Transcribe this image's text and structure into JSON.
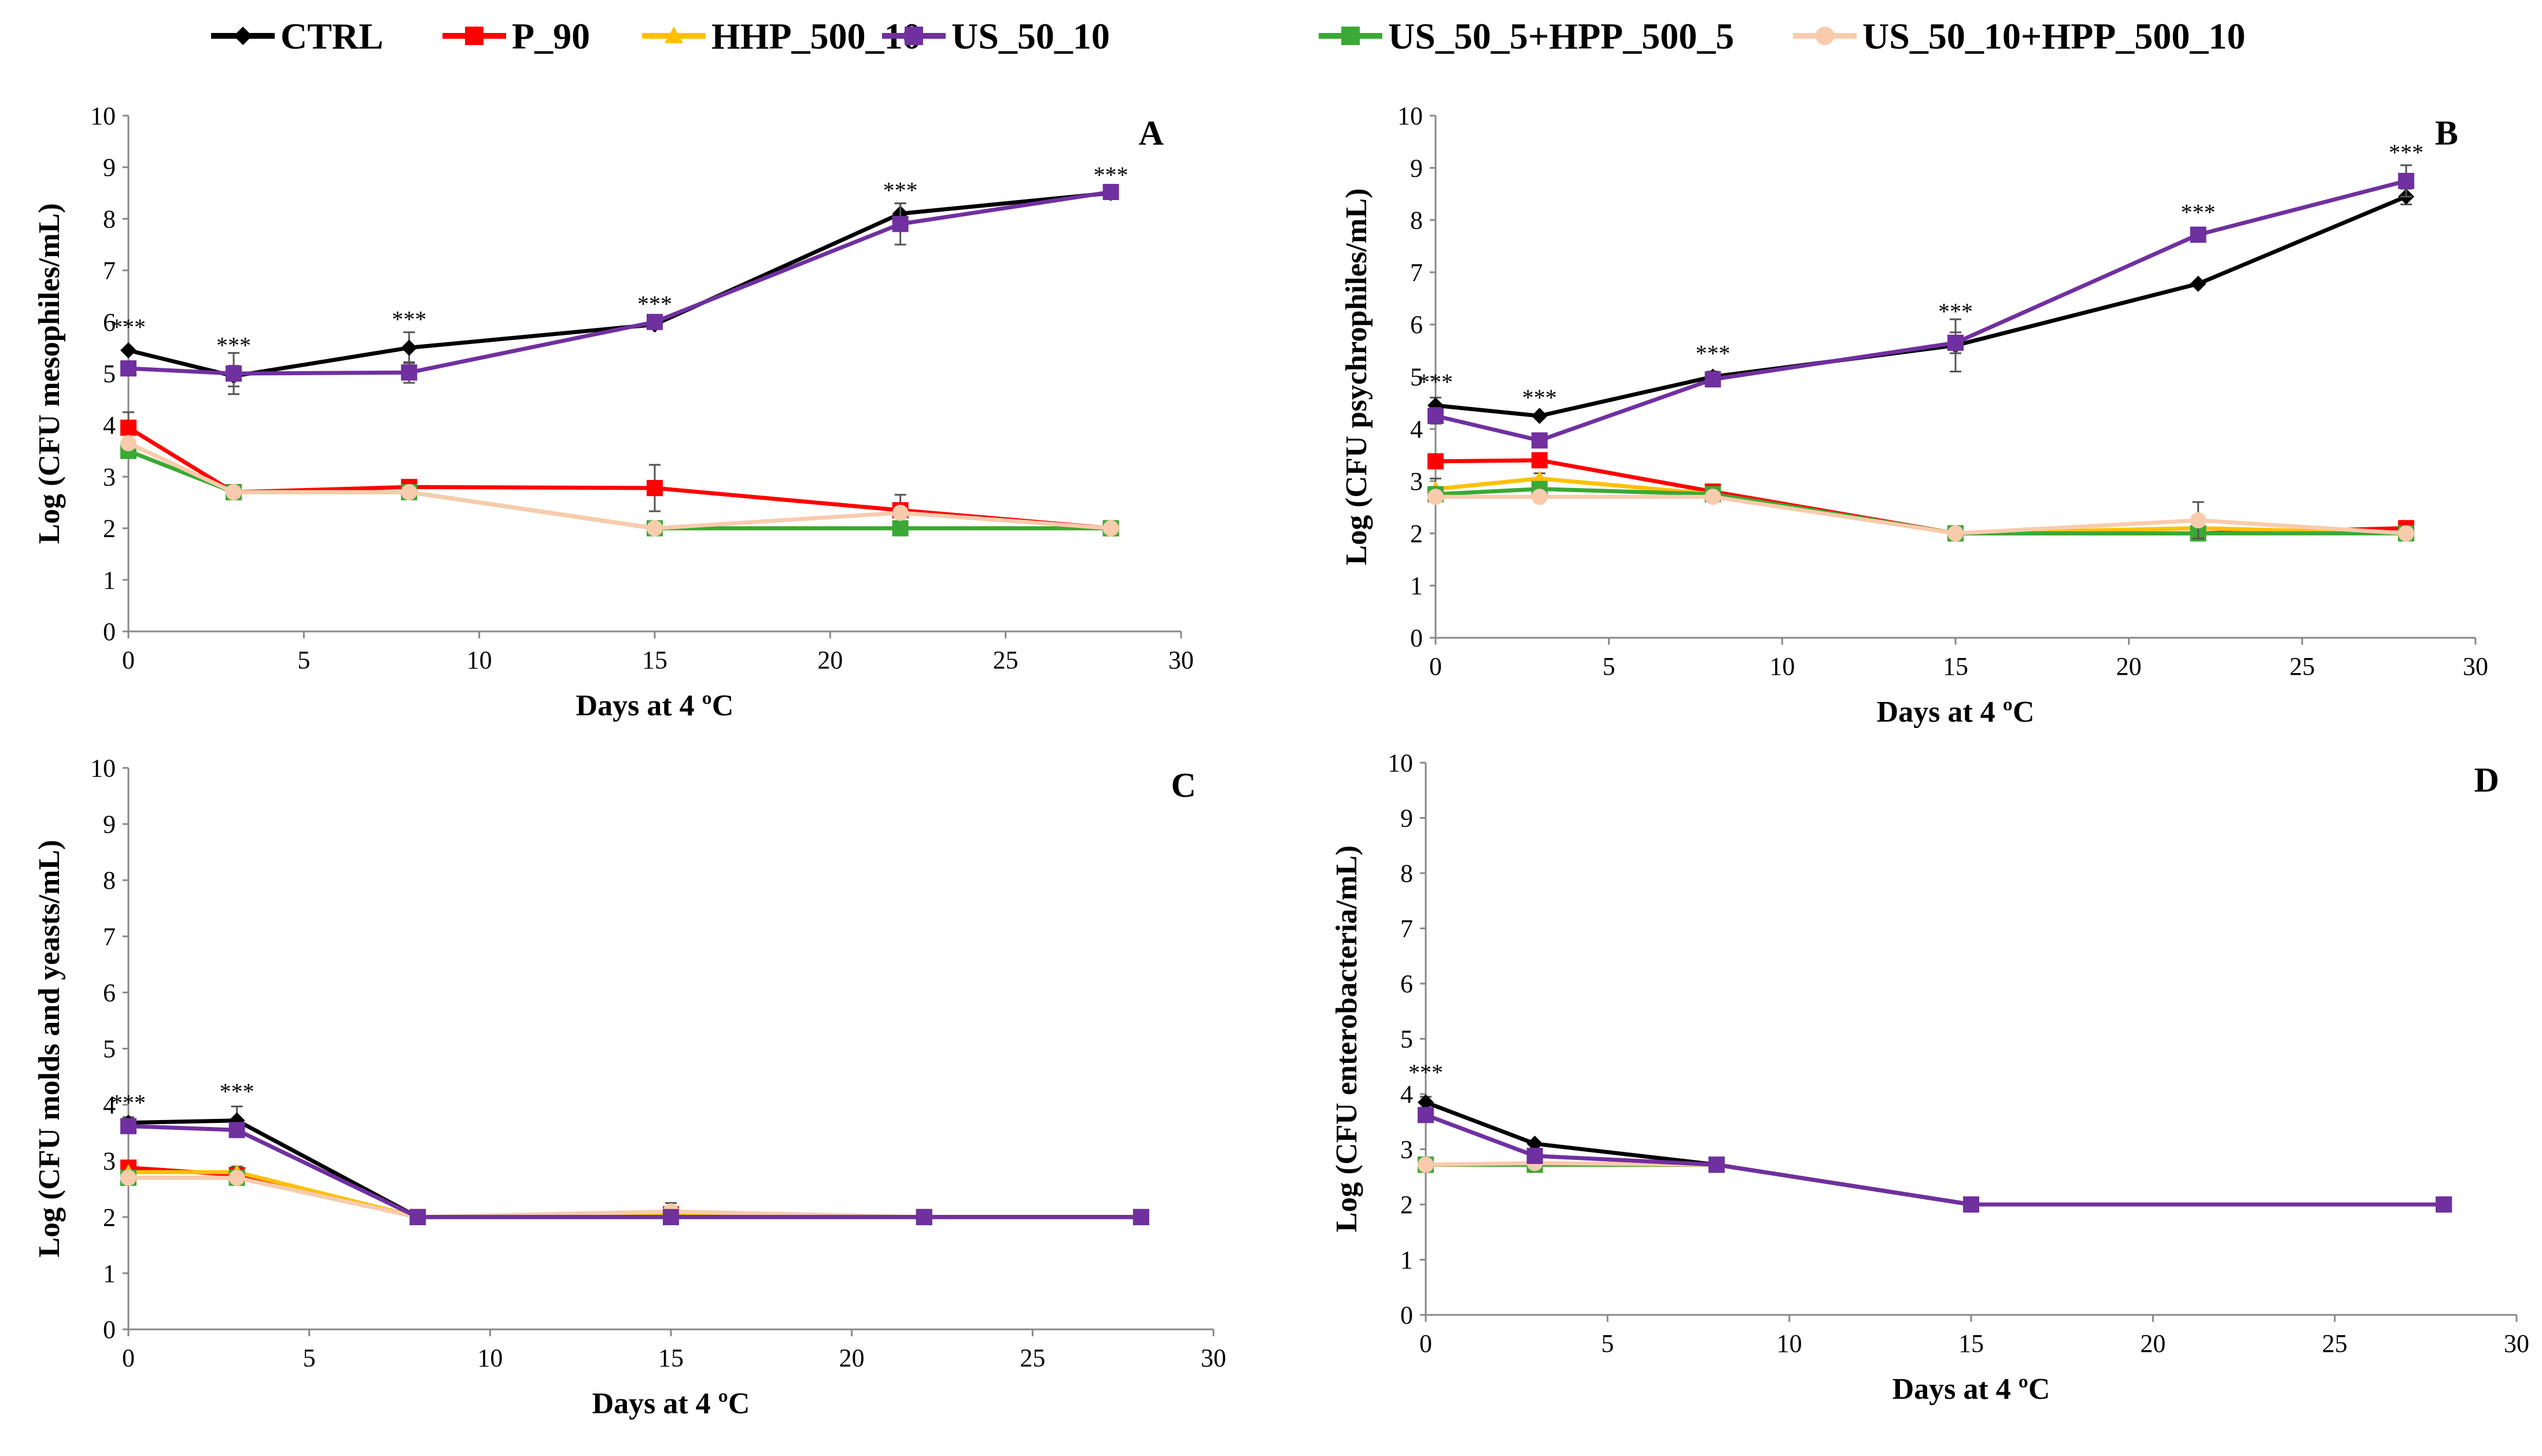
{
  "legend": [
    {
      "name": "CTRL",
      "color": "#000000",
      "marker": "diamond"
    },
    {
      "name": "P_90",
      "color": "#ff0000",
      "marker": "square"
    },
    {
      "name": "HHP_500_10",
      "color": "#ffc000",
      "marker": "triangle"
    },
    {
      "name": "US_50_10",
      "color": "#7030a0",
      "marker": "square"
    },
    {
      "name": "US_50_5+HPP_500_5",
      "color": "#3aa935",
      "marker": "square"
    },
    {
      "name": "US_50_10+HPP_500_10",
      "color": "#f8cbad",
      "marker": "circle"
    }
  ],
  "chart_data": [
    {
      "id": "A",
      "type": "line",
      "panel_label": "A",
      "xlabel": "Days at 4 ºC",
      "ylabel": "Log (CFU  mesophiles/mL)",
      "xlim": [
        0,
        30
      ],
      "ylim": [
        0,
        10
      ],
      "xticks": [
        "0",
        "5",
        "10",
        "15",
        "20",
        "25",
        "30"
      ],
      "yticks": [
        "0",
        "1",
        "2",
        "3",
        "4",
        "5",
        "6",
        "7",
        "8",
        "9",
        "10"
      ],
      "x": [
        0,
        3,
        8,
        15,
        22,
        28
      ],
      "series": [
        {
          "name": "CTRL",
          "values": [
            5.45,
            4.95,
            5.5,
            5.95,
            8.1,
            8.5
          ],
          "err": [
            0,
            0.2,
            0.3,
            0,
            0.2,
            0
          ]
        },
        {
          "name": "P_90",
          "values": [
            3.95,
            2.7,
            2.8,
            2.78,
            2.35,
            2.0
          ],
          "err": [
            0.3,
            0,
            0.1,
            0.45,
            0.3,
            0
          ]
        },
        {
          "name": "HHP_500_10",
          "values": [
            3.65,
            2.7,
            2.7,
            2.0,
            2.0,
            2.0
          ],
          "err": [
            0,
            0,
            0,
            0,
            0,
            0
          ]
        },
        {
          "name": "US_50_10",
          "values": [
            5.1,
            5.0,
            5.02,
            6.0,
            7.9,
            8.52
          ],
          "err": [
            0,
            0.4,
            0.2,
            0.1,
            0.4,
            0
          ]
        },
        {
          "name": "US_50_5+HPP_500_5",
          "values": [
            3.5,
            2.7,
            2.7,
            2.0,
            2.0,
            2.0
          ],
          "err": [
            0,
            0,
            0,
            0,
            0,
            0
          ]
        },
        {
          "name": "US_50_10+HPP_500_10",
          "values": [
            3.65,
            2.7,
            2.7,
            2.0,
            2.3,
            2.0
          ],
          "err": [
            0,
            0,
            0,
            0,
            0,
            0
          ]
        }
      ],
      "annotations": [
        {
          "x": 0,
          "y": 5.75,
          "text": "***"
        },
        {
          "x": 3,
          "y": 5.4,
          "text": "***"
        },
        {
          "x": 8,
          "y": 5.9,
          "text": "***"
        },
        {
          "x": 15,
          "y": 6.2,
          "text": "***"
        },
        {
          "x": 22,
          "y": 8.4,
          "text": "***"
        },
        {
          "x": 28,
          "y": 8.7,
          "text": "***"
        }
      ]
    },
    {
      "id": "B",
      "type": "line",
      "panel_label": "B",
      "xlabel": "Days at 4 ºC",
      "ylabel": "Log (CFU psychrophiles/mL)",
      "xlim": [
        0,
        30
      ],
      "ylim": [
        0,
        10
      ],
      "xticks": [
        "0",
        "5",
        "10",
        "15",
        "20",
        "25",
        "30"
      ],
      "yticks": [
        "0",
        "1",
        "2",
        "3",
        "4",
        "5",
        "6",
        "7",
        "8",
        "9",
        "10"
      ],
      "x": [
        0,
        3,
        8,
        15,
        22,
        28
      ],
      "series": [
        {
          "name": "CTRL",
          "values": [
            4.45,
            4.25,
            5.0,
            5.6,
            6.78,
            8.45
          ],
          "err": [
            0.15,
            0,
            0.1,
            0.5,
            0,
            0.15
          ]
        },
        {
          "name": "P_90",
          "values": [
            3.38,
            3.4,
            2.8,
            2.0,
            2.0,
            2.1
          ],
          "err": [
            0,
            0,
            0.1,
            0,
            0,
            0
          ]
        },
        {
          "name": "HHP_500_10",
          "values": [
            2.85,
            3.05,
            2.75,
            2.0,
            2.1,
            2.0
          ],
          "err": [
            0.2,
            0.1,
            0,
            0,
            0,
            0
          ]
        },
        {
          "name": "US_50_10",
          "values": [
            4.25,
            3.78,
            4.95,
            5.65,
            7.72,
            8.75
          ],
          "err": [
            0.15,
            0.1,
            0.1,
            0.2,
            0,
            0.3
          ]
        },
        {
          "name": "US_50_5+HPP_500_5",
          "values": [
            2.75,
            2.85,
            2.75,
            2.0,
            2.0,
            2.0
          ],
          "err": [
            0,
            0,
            0,
            0,
            0,
            0
          ]
        },
        {
          "name": "US_50_10+HPP_500_10",
          "values": [
            2.7,
            2.7,
            2.7,
            2.0,
            2.25,
            2.0
          ],
          "err": [
            0,
            0,
            0,
            0,
            0.35,
            0
          ]
        }
      ],
      "annotations": [
        {
          "x": 0,
          "y": 4.75,
          "text": "***"
        },
        {
          "x": 3,
          "y": 4.45,
          "text": "***"
        },
        {
          "x": 8,
          "y": 5.3,
          "text": "***"
        },
        {
          "x": 15,
          "y": 6.1,
          "text": "***"
        },
        {
          "x": 22,
          "y": 8.0,
          "text": "***"
        },
        {
          "x": 28,
          "y": 9.15,
          "text": "***"
        }
      ]
    },
    {
      "id": "C",
      "type": "line",
      "panel_label": "C",
      "xlabel": "Days at 4 ºC",
      "ylabel": "Log (CFU molds and yeasts/mL)",
      "xlim": [
        0,
        30
      ],
      "ylim": [
        0,
        10
      ],
      "xticks": [
        "0",
        "5",
        "10",
        "15",
        "20",
        "25",
        "30"
      ],
      "yticks": [
        "0",
        "1",
        "2",
        "3",
        "4",
        "5",
        "6",
        "7",
        "8",
        "9",
        "10"
      ],
      "x": [
        0,
        3,
        8,
        15,
        22,
        28
      ],
      "series": [
        {
          "name": "CTRL",
          "values": [
            3.68,
            3.72,
            2.0,
            2.0,
            2.0,
            2.0
          ],
          "err": [
            0.1,
            0.25,
            0,
            0,
            0,
            0
          ]
        },
        {
          "name": "P_90",
          "values": [
            2.88,
            2.75,
            2.0,
            2.05,
            2.0,
            2.0
          ],
          "err": [
            0,
            0,
            0,
            0,
            0,
            0
          ]
        },
        {
          "name": "HHP_500_10",
          "values": [
            2.8,
            2.8,
            2.0,
            2.05,
            2.0,
            2.0
          ],
          "err": [
            0,
            0.1,
            0,
            0,
            0,
            0
          ]
        },
        {
          "name": "US_50_10",
          "values": [
            3.62,
            3.55,
            2.0,
            2.0,
            2.0,
            2.0
          ],
          "err": [
            0,
            0,
            0,
            0,
            0,
            0
          ]
        },
        {
          "name": "US_50_5+HPP_500_5",
          "values": [
            2.7,
            2.7,
            2.0,
            2.0,
            2.0,
            2.0
          ],
          "err": [
            0,
            0,
            0,
            0,
            0,
            0
          ]
        },
        {
          "name": "US_50_10+HPP_500_10",
          "values": [
            2.7,
            2.7,
            2.0,
            2.1,
            2.0,
            2.0
          ],
          "err": [
            0,
            0,
            0,
            0.15,
            0,
            0
          ]
        }
      ],
      "annotations": [
        {
          "x": 0,
          "y": 3.9,
          "text": "***"
        },
        {
          "x": 3,
          "y": 4.1,
          "text": "***"
        }
      ]
    },
    {
      "id": "D",
      "type": "line",
      "panel_label": "D",
      "xlabel": "Days at 4 ºC",
      "ylabel": "Log (CFU enterobacteria/mL)",
      "xlim": [
        0,
        30
      ],
      "ylim": [
        0,
        10
      ],
      "xticks": [
        "0",
        "5",
        "10",
        "15",
        "20",
        "25",
        "30"
      ],
      "yticks": [
        "0",
        "1",
        "2",
        "3",
        "4",
        "5",
        "6",
        "7",
        "8",
        "9",
        "10"
      ],
      "x": [
        0,
        3,
        8,
        15,
        28
      ],
      "series": [
        {
          "name": "CTRL",
          "values": [
            3.85,
            3.1,
            2.72,
            2.0,
            2.0
          ],
          "err": [
            0.1,
            0,
            0,
            0,
            0
          ]
        },
        {
          "name": "P_90",
          "values": [
            2.72,
            2.72,
            2.72,
            2.0,
            2.0
          ],
          "err": [
            0,
            0,
            0,
            0,
            0
          ]
        },
        {
          "name": "HHP_500_10",
          "values": [
            2.72,
            2.72,
            2.72,
            2.0,
            2.0
          ],
          "err": [
            0,
            0,
            0,
            0,
            0
          ]
        },
        {
          "name": "US_50_10",
          "values": [
            3.62,
            2.88,
            2.72,
            2.0,
            2.0
          ],
          "err": [
            0,
            0,
            0,
            0,
            0
          ]
        },
        {
          "name": "US_50_5+HPP_500_5",
          "values": [
            2.72,
            2.72,
            2.72,
            2.0,
            2.0
          ],
          "err": [
            0,
            0,
            0,
            0,
            0
          ]
        },
        {
          "name": "US_50_10+HPP_500_10",
          "values": [
            2.72,
            2.75,
            2.72,
            2.0,
            2.0
          ],
          "err": [
            0,
            0,
            0,
            0,
            0
          ]
        }
      ],
      "annotations": [
        {
          "x": 0,
          "y": 4.25,
          "text": "***"
        }
      ]
    }
  ]
}
